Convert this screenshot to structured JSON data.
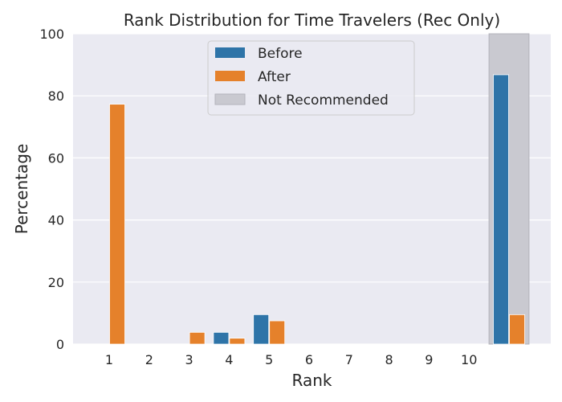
{
  "chart_data": {
    "type": "bar",
    "title": "Rank Distribution for Time Travelers (Rec Only)",
    "xlabel": "Rank",
    "ylabel": "Percentage",
    "ylim": [
      0,
      100
    ],
    "yticks": [
      0,
      20,
      40,
      60,
      80,
      100
    ],
    "categories": [
      "1",
      "2",
      "3",
      "4",
      "5",
      "6",
      "7",
      "8",
      "9",
      "10",
      ""
    ],
    "series": [
      {
        "name": "Before",
        "color": "#2e74a8",
        "values": [
          0,
          0,
          0,
          3.8,
          9.5,
          0,
          0,
          0,
          0,
          0,
          86.8
        ]
      },
      {
        "name": "After",
        "color": "#e5812b",
        "values": [
          77.3,
          0,
          3.8,
          1.9,
          7.5,
          0,
          0,
          0,
          0,
          0,
          9.5
        ]
      }
    ],
    "not_recommended": {
      "name": "Not Recommended",
      "color": "#c9c9d0",
      "category_index": 10
    },
    "legend": {
      "placement": "top-center"
    },
    "grid": true,
    "background": "#eaeaf2"
  }
}
